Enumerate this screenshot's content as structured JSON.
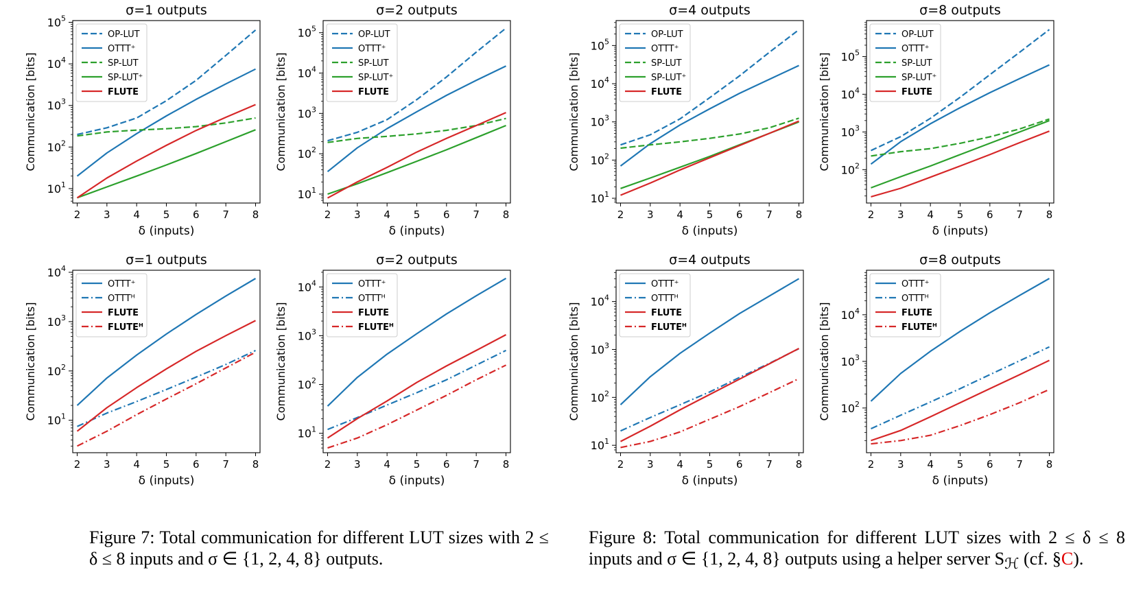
{
  "colors": {
    "blue": "#1f77b4",
    "green": "#2ca02c",
    "red": "#d62728"
  },
  "captions": [
    {
      "label": "Figure 7:",
      "text": "Total communication for different LUT sizes with 2 ≤ δ ≤ 8 inputs and σ ∈ {1, 2, 4, 8} outputs."
    },
    {
      "label": "Figure 8:",
      "text": "Total communication for different LUT sizes with 2 ≤ δ ≤ 8 inputs and σ ∈ {1, 2, 4, 8} outputs using a helper server S",
      "sub": "ℋ",
      "tail_pre": " (cf. §",
      "ref": "C",
      "tail_post": ")."
    }
  ],
  "chart_data": [
    {
      "type": "line",
      "title": "σ=1 outputs",
      "xlabel": "δ (inputs)",
      "ylabel": "Communication [bits]",
      "x": [
        2,
        3,
        4,
        5,
        6,
        7,
        8
      ],
      "yscale": "log",
      "ylim": [
        4.5,
        110000
      ],
      "yticks": [
        1,
        2,
        3,
        4,
        5
      ],
      "legend": "top-left",
      "series": [
        {
          "name": "OP-LUT",
          "color": "blue",
          "style": "dashed",
          "values": [
            200,
            290,
            500,
            1300,
            4000,
            16000,
            65000
          ]
        },
        {
          "name": "OTTT⁺",
          "color": "blue",
          "style": "solid",
          "values": [
            20,
            72,
            210,
            560,
            1400,
            3300,
            7500
          ]
        },
        {
          "name": "SP-LUT",
          "color": "green",
          "style": "dashed",
          "values": [
            185,
            230,
            255,
            275,
            310,
            380,
            500
          ]
        },
        {
          "name": "SP-LUT⁺",
          "color": "green",
          "style": "solid",
          "values": [
            6,
            11,
            20,
            37,
            70,
            135,
            260
          ]
        },
        {
          "name": "FLUTE",
          "color": "red",
          "style": "solid",
          "bold": true,
          "values": [
            6,
            18,
            46,
            110,
            250,
            520,
            1050
          ]
        }
      ]
    },
    {
      "type": "line",
      "title": "σ=2 outputs",
      "xlabel": "δ (inputs)",
      "ylabel": "Communication [bits]",
      "x": [
        2,
        3,
        4,
        5,
        6,
        7,
        8
      ],
      "yscale": "log",
      "ylim": [
        6,
        200000
      ],
      "yticks": [
        1,
        2,
        3,
        4,
        5
      ],
      "legend": "top-left",
      "series": [
        {
          "name": "OP-LUT",
          "color": "blue",
          "style": "dashed",
          "values": [
            210,
            340,
            700,
            2200,
            8000,
            33000,
            130000
          ]
        },
        {
          "name": "OTTT⁺",
          "color": "blue",
          "style": "solid",
          "values": [
            36,
            140,
            420,
            1100,
            2800,
            6600,
            15000
          ]
        },
        {
          "name": "SP-LUT",
          "color": "green",
          "style": "dashed",
          "values": [
            190,
            240,
            270,
            310,
            380,
            500,
            750
          ]
        },
        {
          "name": "SP-LUT⁺",
          "color": "green",
          "style": "solid",
          "values": [
            10,
            18,
            34,
            65,
            125,
            250,
            500
          ]
        },
        {
          "name": "FLUTE",
          "color": "red",
          "style": "solid",
          "bold": true,
          "values": [
            8,
            20,
            46,
            110,
            240,
            500,
            1050
          ]
        }
      ]
    },
    {
      "type": "line",
      "title": "σ=1 outputs",
      "xlabel": "δ (inputs)",
      "ylabel": "Communication [bits]",
      "x": [
        2,
        3,
        4,
        5,
        6,
        7,
        8
      ],
      "yscale": "log",
      "ylim": [
        2.2,
        11000
      ],
      "yticks": [
        1,
        2,
        3,
        4
      ],
      "legend": "top-left",
      "series": [
        {
          "name": "OTTT⁺",
          "color": "blue",
          "style": "solid",
          "values": [
            20,
            72,
            210,
            560,
            1400,
            3300,
            7500
          ]
        },
        {
          "name": "OTTTᴴ",
          "color": "blue",
          "style": "dashdot",
          "values": [
            7.5,
            14,
            24,
            42,
            75,
            135,
            260
          ]
        },
        {
          "name": "FLUTE",
          "color": "red",
          "style": "solid",
          "bold": true,
          "values": [
            6,
            18,
            46,
            110,
            250,
            520,
            1050
          ]
        },
        {
          "name": "FLUTEᴴ",
          "color": "red",
          "style": "dashdot",
          "bold": true,
          "values": [
            3,
            6,
            13,
            27,
            55,
            115,
            240
          ]
        }
      ]
    },
    {
      "type": "line",
      "title": "σ=2 outputs",
      "xlabel": "δ (inputs)",
      "ylabel": "Communication [bits]",
      "x": [
        2,
        3,
        4,
        5,
        6,
        7,
        8
      ],
      "yscale": "log",
      "ylim": [
        4,
        22000
      ],
      "yticks": [
        1,
        2,
        3,
        4
      ],
      "legend": "top-left",
      "series": [
        {
          "name": "OTTT⁺",
          "color": "blue",
          "style": "solid",
          "values": [
            36,
            140,
            420,
            1100,
            2800,
            6600,
            15000
          ]
        },
        {
          "name": "OTTTᴴ",
          "color": "blue",
          "style": "dashdot",
          "values": [
            12,
            21,
            38,
            68,
            125,
            250,
            500
          ]
        },
        {
          "name": "FLUTE",
          "color": "red",
          "style": "solid",
          "bold": true,
          "values": [
            8,
            20,
            46,
            110,
            240,
            500,
            1050
          ]
        },
        {
          "name": "FLUTEᴴ",
          "color": "red",
          "style": "dashdot",
          "bold": true,
          "values": [
            5,
            8,
            15,
            30,
            60,
            125,
            250
          ]
        }
      ]
    },
    {
      "type": "line",
      "title": "σ=4 outputs",
      "xlabel": "δ (inputs)",
      "ylabel": "Communication [bits]",
      "x": [
        2,
        3,
        4,
        5,
        6,
        7,
        8
      ],
      "yscale": "log",
      "ylim": [
        7.5,
        450000
      ],
      "yticks": [
        1,
        2,
        3,
        4,
        5
      ],
      "legend": "top-left",
      "series": [
        {
          "name": "OP-LUT",
          "color": "blue",
          "style": "dashed",
          "values": [
            250,
            460,
            1200,
            4300,
            16000,
            66000,
            260000
          ]
        },
        {
          "name": "OTTT⁺",
          "color": "blue",
          "style": "solid",
          "values": [
            70,
            270,
            830,
            2200,
            5600,
            13000,
            30000
          ]
        },
        {
          "name": "SP-LUT",
          "color": "green",
          "style": "dashed",
          "values": [
            205,
            250,
            300,
            370,
            480,
            700,
            1250
          ]
        },
        {
          "name": "SP-LUT⁺",
          "color": "green",
          "style": "solid",
          "values": [
            18,
            34,
            65,
            125,
            250,
            500,
            1000
          ]
        },
        {
          "name": "FLUTE",
          "color": "red",
          "style": "solid",
          "bold": true,
          "values": [
            12,
            25,
            55,
            115,
            240,
            500,
            1050
          ]
        }
      ]
    },
    {
      "type": "line",
      "title": "σ=8 outputs",
      "xlabel": "δ (inputs)",
      "ylabel": "Communication [bits]",
      "x": [
        2,
        3,
        4,
        5,
        6,
        7,
        8
      ],
      "yscale": "log",
      "ylim": [
        13,
        900000
      ],
      "yticks": [
        2,
        3,
        4,
        5
      ],
      "legend": "top-left",
      "series": [
        {
          "name": "OP-LUT",
          "color": "blue",
          "style": "dashed",
          "values": [
            320,
            750,
            2300,
            8300,
            33000,
            130000,
            520000
          ]
        },
        {
          "name": "OTTT⁺",
          "color": "blue",
          "style": "solid",
          "values": [
            140,
            550,
            1650,
            4400,
            11000,
            26000,
            60000
          ]
        },
        {
          "name": "SP-LUT",
          "color": "green",
          "style": "dashed",
          "values": [
            230,
            300,
            360,
            500,
            740,
            1200,
            2200
          ]
        },
        {
          "name": "SP-LUT⁺",
          "color": "green",
          "style": "solid",
          "values": [
            33,
            65,
            125,
            250,
            500,
            1000,
            2000
          ]
        },
        {
          "name": "FLUTE",
          "color": "red",
          "style": "solid",
          "bold": true,
          "values": [
            19,
            32,
            63,
            125,
            250,
            520,
            1050
          ]
        }
      ]
    },
    {
      "type": "line",
      "title": "σ=4 outputs",
      "xlabel": "δ (inputs)",
      "ylabel": "Communication [bits]",
      "x": [
        2,
        3,
        4,
        5,
        6,
        7,
        8
      ],
      "yscale": "log",
      "ylim": [
        7,
        45000
      ],
      "yticks": [
        1,
        2,
        3,
        4
      ],
      "legend": "top-left",
      "series": [
        {
          "name": "OTTT⁺",
          "color": "blue",
          "style": "solid",
          "values": [
            70,
            270,
            830,
            2200,
            5600,
            13000,
            30000
          ]
        },
        {
          "name": "OTTTᴴ",
          "color": "blue",
          "style": "dashdot",
          "values": [
            20,
            38,
            70,
            130,
            260,
            510,
            1040
          ]
        },
        {
          "name": "FLUTE",
          "color": "red",
          "style": "solid",
          "bold": true,
          "values": [
            12,
            25,
            55,
            115,
            240,
            500,
            1050
          ]
        },
        {
          "name": "FLUTEᴴ",
          "color": "red",
          "style": "dashdot",
          "bold": true,
          "values": [
            9,
            12,
            19,
            35,
            64,
            125,
            245
          ]
        }
      ]
    },
    {
      "type": "line",
      "title": "σ=8 outputs",
      "xlabel": "δ (inputs)",
      "ylabel": "Communication [bits]",
      "x": [
        2,
        3,
        4,
        5,
        6,
        7,
        8
      ],
      "yscale": "log",
      "ylim": [
        11,
        90000
      ],
      "yticks": [
        2,
        3,
        4
      ],
      "legend": "top-left",
      "series": [
        {
          "name": "OTTT⁺",
          "color": "blue",
          "style": "solid",
          "values": [
            140,
            550,
            1650,
            4400,
            11000,
            26000,
            60000
          ]
        },
        {
          "name": "OTTTᴴ",
          "color": "blue",
          "style": "dashdot",
          "values": [
            36,
            70,
            135,
            260,
            520,
            1030,
            2050
          ]
        },
        {
          "name": "FLUTE",
          "color": "red",
          "style": "solid",
          "bold": true,
          "values": [
            20,
            33,
            65,
            130,
            260,
            520,
            1050
          ]
        },
        {
          "name": "FLUTEᴴ",
          "color": "red",
          "style": "dashdot",
          "bold": true,
          "values": [
            17,
            20,
            26,
            42,
            72,
            130,
            250
          ]
        }
      ]
    }
  ]
}
